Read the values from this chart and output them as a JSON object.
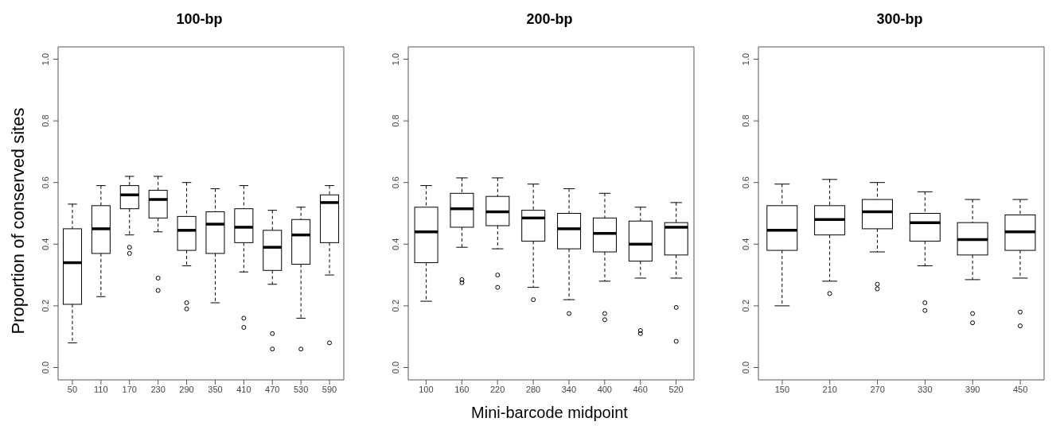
{
  "chart_data": [
    {
      "type": "box",
      "title": "100-bp",
      "ylabel": "Proportion of conserved sites",
      "color": "#000000",
      "categories": [
        "50",
        "110",
        "170",
        "230",
        "290",
        "350",
        "410",
        "470",
        "530",
        "590"
      ],
      "boxes": [
        {
          "low": 0.08,
          "q1": 0.205,
          "median": 0.34,
          "q3": 0.45,
          "high": 0.53
        },
        {
          "low": 0.23,
          "q1": 0.37,
          "median": 0.45,
          "q3": 0.525,
          "high": 0.59
        },
        {
          "low": 0.43,
          "q1": 0.515,
          "median": 0.56,
          "q3": 0.59,
          "high": 0.62,
          "outliers": [
            0.39,
            0.37
          ]
        },
        {
          "low": 0.44,
          "q1": 0.485,
          "median": 0.545,
          "q3": 0.575,
          "high": 0.62,
          "outliers": [
            0.29,
            0.25
          ]
        },
        {
          "low": 0.33,
          "q1": 0.38,
          "median": 0.445,
          "q3": 0.49,
          "high": 0.6,
          "outliers": [
            0.21,
            0.19
          ]
        },
        {
          "low": 0.21,
          "q1": 0.37,
          "median": 0.465,
          "q3": 0.505,
          "high": 0.58
        },
        {
          "low": 0.31,
          "q1": 0.405,
          "median": 0.455,
          "q3": 0.515,
          "high": 0.59,
          "outliers": [
            0.16,
            0.13
          ]
        },
        {
          "low": 0.27,
          "q1": 0.315,
          "median": 0.39,
          "q3": 0.445,
          "high": 0.51,
          "outliers": [
            0.11,
            0.06
          ]
        },
        {
          "low": 0.16,
          "q1": 0.335,
          "median": 0.43,
          "q3": 0.48,
          "high": 0.52,
          "outliers": [
            0.06
          ]
        },
        {
          "low": 0.3,
          "q1": 0.405,
          "median": 0.535,
          "q3": 0.56,
          "high": 0.59,
          "outliers": [
            0.08
          ]
        }
      ],
      "ylim": [
        -0.04,
        1.04
      ],
      "yticks": [
        {
          "value": 0,
          "label": "0.0"
        },
        {
          "value": 0.2,
          "label": "0.2"
        },
        {
          "value": 0.4,
          "label": "0.4"
        },
        {
          "value": 0.6,
          "label": "0.6"
        },
        {
          "value": 0.8,
          "label": "0.8"
        },
        {
          "value": 1,
          "label": "1.0"
        }
      ]
    },
    {
      "type": "box",
      "title": "200-bp",
      "xlabel": "Mini-barcode midpoint",
      "color": "#000000",
      "categories": [
        "100",
        "160",
        "220",
        "280",
        "340",
        "400",
        "460",
        "520"
      ],
      "boxes": [
        {
          "low": 0.215,
          "q1": 0.34,
          "median": 0.44,
          "q3": 0.52,
          "high": 0.59
        },
        {
          "low": 0.39,
          "q1": 0.455,
          "median": 0.515,
          "q3": 0.565,
          "high": 0.615,
          "outliers": [
            0.285,
            0.275
          ]
        },
        {
          "low": 0.385,
          "q1": 0.46,
          "median": 0.505,
          "q3": 0.555,
          "high": 0.615,
          "outliers": [
            0.3,
            0.26
          ]
        },
        {
          "low": 0.26,
          "q1": 0.41,
          "median": 0.485,
          "q3": 0.51,
          "high": 0.595,
          "outliers": [
            0.22
          ]
        },
        {
          "low": 0.22,
          "q1": 0.385,
          "median": 0.45,
          "q3": 0.5,
          "high": 0.58,
          "outliers": [
            0.175
          ]
        },
        {
          "low": 0.28,
          "q1": 0.375,
          "median": 0.435,
          "q3": 0.485,
          "high": 0.565,
          "outliers": [
            0.175,
            0.155
          ]
        },
        {
          "low": 0.29,
          "q1": 0.345,
          "median": 0.4,
          "q3": 0.475,
          "high": 0.52,
          "outliers": [
            0.12,
            0.11
          ]
        },
        {
          "low": 0.29,
          "q1": 0.365,
          "median": 0.455,
          "q3": 0.47,
          "high": 0.535,
          "outliers": [
            0.195,
            0.085
          ]
        }
      ],
      "ylim": [
        -0.04,
        1.04
      ],
      "yticks": [
        {
          "value": 0,
          "label": "0.0"
        },
        {
          "value": 0.2,
          "label": "0.2"
        },
        {
          "value": 0.4,
          "label": "0.4"
        },
        {
          "value": 0.6,
          "label": "0.6"
        },
        {
          "value": 0.8,
          "label": "0.8"
        },
        {
          "value": 1,
          "label": "1.0"
        }
      ]
    },
    {
      "type": "box",
      "title": "300-bp",
      "color": "#000000",
      "categories": [
        "150",
        "210",
        "270",
        "330",
        "390",
        "450"
      ],
      "boxes": [
        {
          "low": 0.2,
          "q1": 0.38,
          "median": 0.445,
          "q3": 0.525,
          "high": 0.595
        },
        {
          "low": 0.28,
          "q1": 0.43,
          "median": 0.48,
          "q3": 0.525,
          "high": 0.61,
          "outliers": [
            0.24
          ]
        },
        {
          "low": 0.375,
          "q1": 0.45,
          "median": 0.505,
          "q3": 0.545,
          "high": 0.6,
          "outliers": [
            0.27,
            0.255
          ]
        },
        {
          "low": 0.33,
          "q1": 0.41,
          "median": 0.47,
          "q3": 0.5,
          "high": 0.57,
          "outliers": [
            0.21,
            0.185
          ]
        },
        {
          "low": 0.285,
          "q1": 0.365,
          "median": 0.415,
          "q3": 0.47,
          "high": 0.545,
          "outliers": [
            0.175,
            0.145
          ]
        },
        {
          "low": 0.29,
          "q1": 0.38,
          "median": 0.44,
          "q3": 0.495,
          "high": 0.545,
          "outliers": [
            0.18,
            0.135
          ]
        }
      ],
      "ylim": [
        -0.04,
        1.04
      ],
      "yticks": [
        {
          "value": 0,
          "label": "0.0"
        },
        {
          "value": 0.2,
          "label": "0.2"
        },
        {
          "value": 0.4,
          "label": "0.4"
        },
        {
          "value": 0.6,
          "label": "0.6"
        },
        {
          "value": 0.8,
          "label": "0.8"
        },
        {
          "value": 1,
          "label": "1.0"
        }
      ]
    }
  ]
}
